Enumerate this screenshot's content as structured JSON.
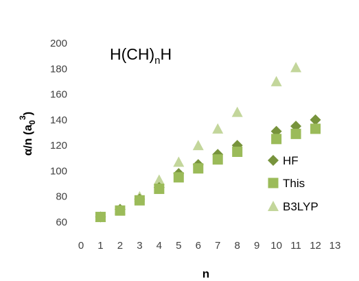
{
  "chart_data": {
    "type": "scatter",
    "title": {
      "main": "H(CH)",
      "sub": "n",
      "tail": "H"
    },
    "xlabel": "n",
    "ylabel": {
      "prefix": "α/n (a",
      "sub": "0",
      "sup": "3",
      "suffix": ")"
    },
    "xlim": [
      0,
      13
    ],
    "ylim": [
      60,
      200
    ],
    "xticks": [
      0,
      1,
      2,
      3,
      4,
      5,
      6,
      7,
      8,
      9,
      10,
      11,
      12,
      13
    ],
    "yticks": [
      60,
      80,
      100,
      120,
      140,
      160,
      180,
      200
    ],
    "grid": false,
    "legend_position": "right",
    "series": [
      {
        "name": "HF",
        "marker": "diamond",
        "color": "#77933c",
        "x": [
          1,
          2,
          3,
          4,
          5,
          6,
          7,
          8,
          10,
          11,
          12
        ],
        "y": [
          64,
          70,
          78,
          87,
          98,
          105,
          113,
          120,
          131,
          135,
          140
        ]
      },
      {
        "name": "This",
        "marker": "square",
        "color": "#9bbb59",
        "x": [
          1,
          2,
          3,
          4,
          5,
          6,
          7,
          8,
          10,
          11,
          12
        ],
        "y": [
          64,
          69,
          77,
          86,
          95,
          102,
          109,
          115,
          125,
          129,
          133
        ]
      },
      {
        "name": "B3LYP",
        "marker": "triangle",
        "color": "#c3d69b",
        "x": [
          1,
          2,
          3,
          4,
          5,
          6,
          7,
          8,
          10,
          11,
          12
        ],
        "y": [
          64,
          70,
          80,
          93,
          107,
          120,
          133,
          146,
          170,
          181,
          null
        ]
      }
    ]
  }
}
